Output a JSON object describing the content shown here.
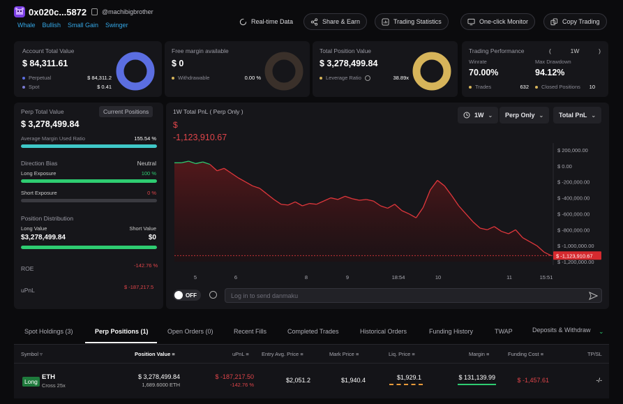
{
  "header": {
    "address": "0x020c...5872",
    "handle": "@machibigbrother",
    "tags": [
      "Whale",
      "Bullish",
      "Small Gain",
      "Swinger"
    ],
    "buttons": {
      "realtime": "Real-time Data",
      "share": "Share & Earn",
      "stats": "Trading Statistics",
      "monitor": "One-click Monitor",
      "copy": "Copy Trading"
    }
  },
  "account": {
    "label": "Account Total Value",
    "value": "$ 84,311.61",
    "perp_label": "Perpetual",
    "perp_value": "$ 84,311.2",
    "spot_label": "Spot",
    "spot_value": "$ 0.41",
    "colors": {
      "perp": "#5b6ee1",
      "spot": "#7a7ad0"
    }
  },
  "margin": {
    "label": "Free margin available",
    "value": "$ 0",
    "withdraw_label": "Withdrawable",
    "withdraw_value": "0.00 %"
  },
  "position": {
    "label": "Total Position Value",
    "value": "$ 3,278,499.84",
    "lev_label": "Leverage Ratio",
    "lev_value": "38.89x",
    "color": "#d6b45a"
  },
  "performance": {
    "label": "Trading Performance",
    "period": "1W",
    "paren_open": "(",
    "paren_close": ")",
    "winrate_label": "Winrate",
    "winrate": "70.00%",
    "dd_label": "Max Drawdown",
    "dd": "94.12%",
    "trades_label": "Trades",
    "trades": "632",
    "closed_label": "Closed Positions",
    "closed": "10"
  },
  "perp": {
    "label": "Perp Total Value",
    "current_btn": "Current Positions",
    "value": "$ 3,278,499.84",
    "aml_label": "Average Margin Used Ratio",
    "aml_value": "155.54 %",
    "aml_fill": 1.0,
    "dir_label": "Direction Bias",
    "dir_value": "Neutral",
    "long_label": "Long Exposure",
    "long_value": "100 %",
    "long_fill": 1.0,
    "short_label": "Short Exposure",
    "short_value": "0 %",
    "short_fill": 0.0,
    "dist_label": "Position Distribution",
    "lv_label": "Long Value",
    "lv_value": "$3,278,499.84",
    "sv_label": "Short Value",
    "sv_value": "$0",
    "roe_label": "ROE",
    "roe_value": "-142.76 %",
    "upnl_label": "uPnL",
    "upnl_value": "$ -187,217.5"
  },
  "pnl": {
    "title": "1W Total PnL ( Perp Only )",
    "value_symbol": "$",
    "value": "-1,123,910.67",
    "period": "1W",
    "mode": "Perp Only",
    "metric": "Total PnL",
    "toggle": "OFF",
    "danmaku_placeholder": "Log in to send danmaku"
  },
  "chart_data": {
    "type": "area",
    "y_ticks": [
      "$ 200,000.00",
      "$ 0.00",
      "$ -200,000.00",
      "$ -400,000.00",
      "$ -600,000.00",
      "$ -800,000.00",
      "$ -1,000,000.00",
      "$ -1,200,000.00"
    ],
    "ylim": [
      -1200000,
      200000
    ],
    "x_ticks": [
      "5",
      "6",
      "8",
      "9",
      "18:54",
      "10",
      "11",
      "15:51"
    ],
    "current_label": "$ -1,123,910.67",
    "y": [
      40000,
      40000,
      60000,
      30000,
      50000,
      20000,
      -60000,
      -30000,
      -90000,
      -150000,
      -200000,
      -250000,
      -280000,
      -350000,
      -420000,
      -480000,
      -490000,
      -450000,
      -500000,
      -470000,
      -480000,
      -440000,
      -400000,
      -420000,
      -380000,
      -410000,
      -430000,
      -420000,
      -440000,
      -500000,
      -530000,
      -480000,
      -560000,
      -600000,
      -650000,
      -520000,
      -300000,
      -180000,
      -250000,
      -370000,
      -500000,
      -600000,
      -700000,
      -780000,
      -800000,
      -760000,
      -820000,
      -850000,
      -800000,
      -900000,
      -950000,
      -1000000,
      -1080000,
      -1123910
    ],
    "colors": {
      "up": "#2ecc71",
      "down": "#e0373c"
    }
  },
  "tabs": [
    "Spot Holdings (3)",
    "Perp Positions (1)",
    "Open Orders (0)",
    "Recent Fills",
    "Completed Trades",
    "Historical Orders",
    "Funding History",
    "TWAP",
    "Deposits & Withdraw"
  ],
  "table": {
    "headers": [
      "Symbol",
      "Position Value",
      "uPnL",
      "Entry Avg. Price",
      "Mark Price",
      "Liq. Price",
      "Margin",
      "Funding Cost",
      "TP/SL"
    ],
    "row": {
      "side": "Long",
      "coin": "ETH",
      "cross": "Cross 25x",
      "pos_value": "$ 3,278,499.84",
      "pos_size": "1,689.6000 ETH",
      "upnl": "$ -187,217.50",
      "upnl_pct": "-142.76 %",
      "entry": "$2,051.2",
      "mark": "$1,940.4",
      "liq": "$1,929.1",
      "margin": "$ 131,139.99",
      "funding": "$ -1,457.61",
      "tpsl": "-/-"
    }
  }
}
